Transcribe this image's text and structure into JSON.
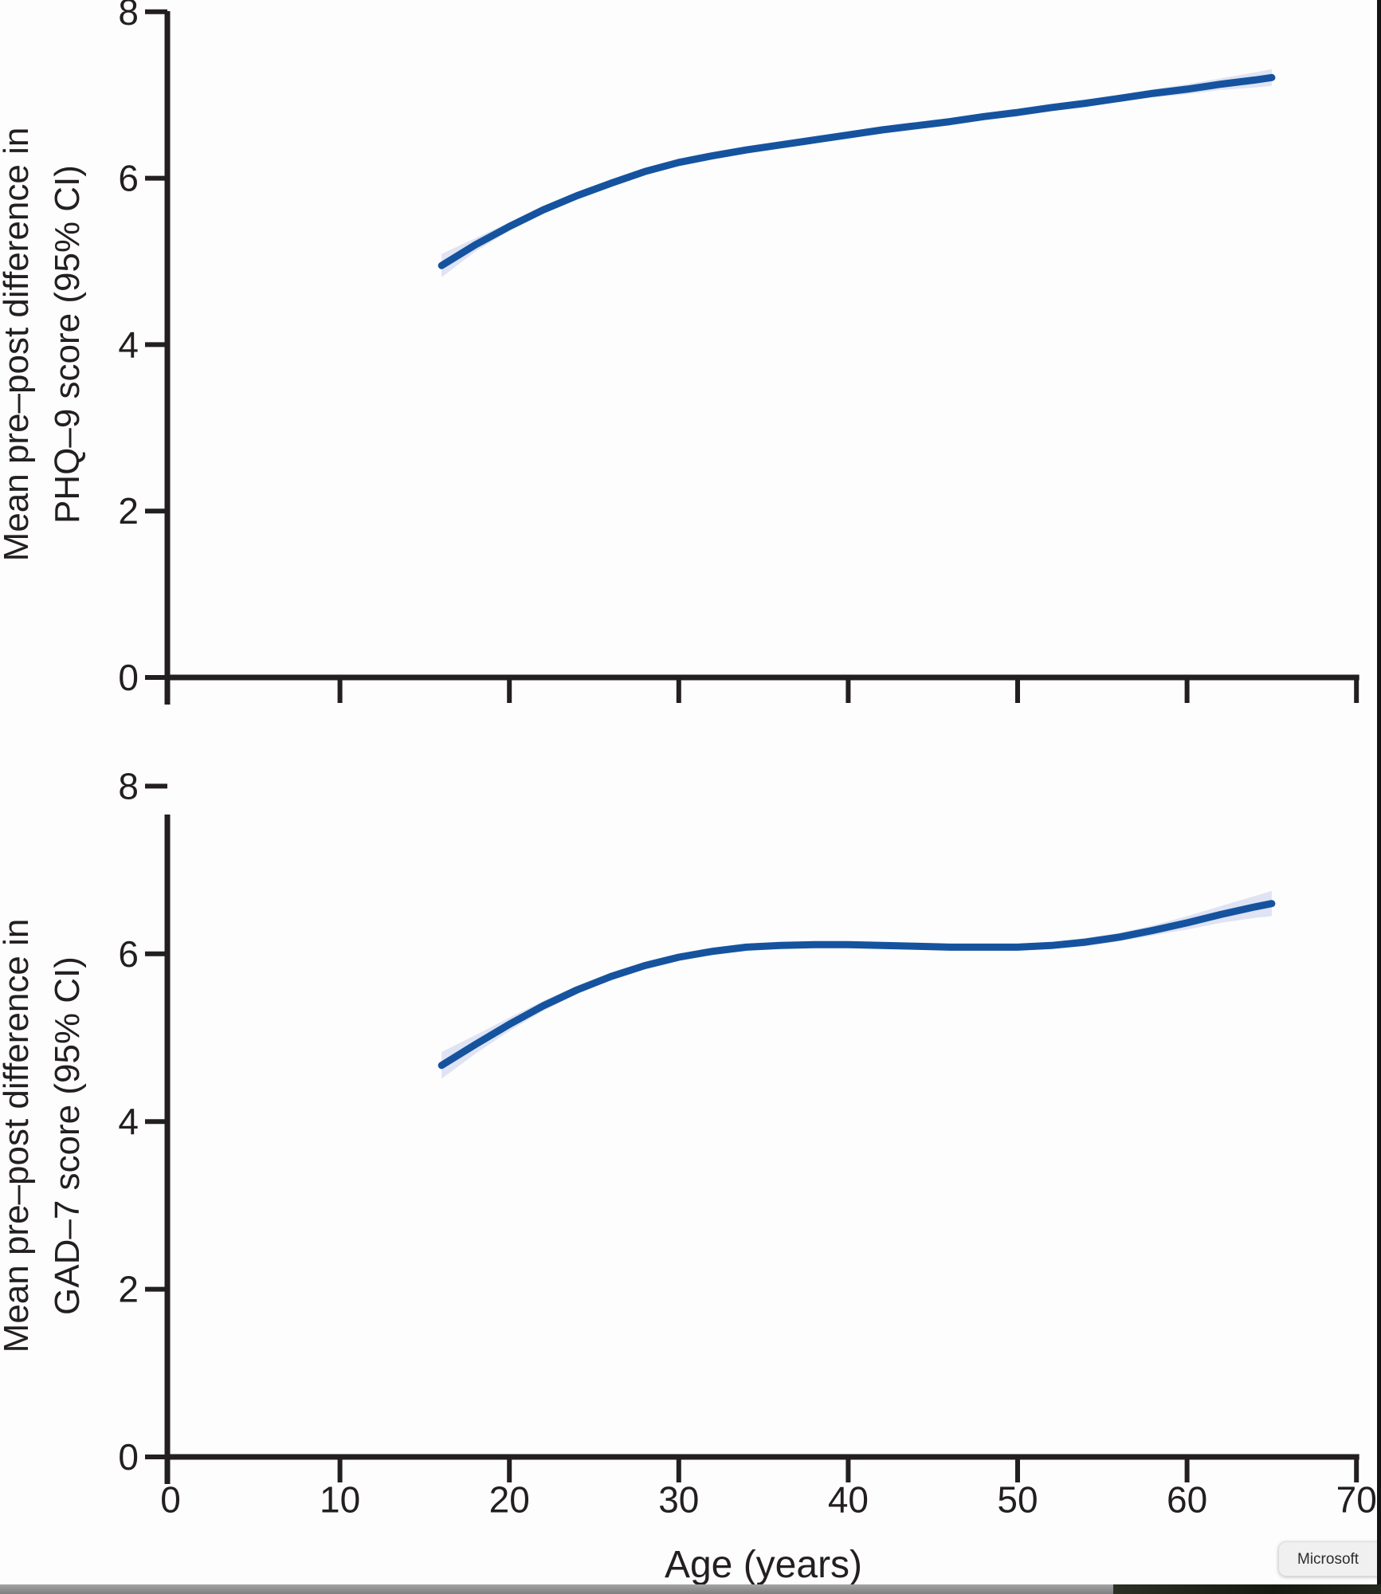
{
  "figure": {
    "axis_color": "#231f20",
    "background": "#fdfdfd"
  },
  "overlay": {
    "badge_text": "Microsoft"
  },
  "chart_data": [
    {
      "type": "line",
      "name": "phq9",
      "title": "",
      "ylabel_line1": "Mean pre–post difference in",
      "ylabel_line2": "PHQ–9 score (95% CI)",
      "xlabel": "",
      "xlim": [
        0,
        70
      ],
      "ylim": [
        0,
        8
      ],
      "yticks": [
        0,
        2,
        4,
        6,
        8
      ],
      "xticks": [
        10,
        20,
        30,
        40,
        50,
        60,
        70
      ],
      "xtick_labels": null,
      "legend": "none",
      "grid": false,
      "x": [
        16,
        18,
        20,
        22,
        24,
        26,
        28,
        30,
        32,
        34,
        36,
        38,
        40,
        42,
        44,
        46,
        48,
        50,
        52,
        54,
        56,
        58,
        60,
        62,
        64,
        65
      ],
      "y": [
        4.95,
        5.2,
        5.42,
        5.62,
        5.79,
        5.94,
        6.08,
        6.19,
        6.27,
        6.34,
        6.4,
        6.46,
        6.52,
        6.58,
        6.63,
        6.68,
        6.74,
        6.79,
        6.85,
        6.9,
        6.96,
        7.02,
        7.07,
        7.13,
        7.18,
        7.21
      ],
      "ci_half": [
        0.14,
        0.08,
        0.05,
        0.04,
        0.03,
        0.03,
        0.03,
        0.03,
        0.03,
        0.03,
        0.03,
        0.03,
        0.03,
        0.03,
        0.03,
        0.03,
        0.03,
        0.03,
        0.03,
        0.04,
        0.04,
        0.05,
        0.06,
        0.07,
        0.09,
        0.1
      ],
      "line_color": "#15539f",
      "band_color": "#dfe3f3"
    },
    {
      "type": "line",
      "name": "gad7",
      "title": "",
      "ylabel_line1": "Mean pre–post difference in",
      "ylabel_line2": "GAD–7 score (95% CI)",
      "xlabel": "Age (years)",
      "xlim": [
        0,
        70
      ],
      "ylim": [
        0,
        8
      ],
      "yticks": [
        0,
        2,
        4,
        6,
        8
      ],
      "xticks": [
        0,
        10,
        20,
        30,
        40,
        50,
        60,
        70
      ],
      "xtick_labels": [
        "0",
        "10",
        "20",
        "30",
        "40",
        "50",
        "60",
        "70"
      ],
      "legend": "none",
      "grid": false,
      "x": [
        16,
        18,
        20,
        22,
        24,
        26,
        28,
        30,
        32,
        34,
        36,
        38,
        40,
        42,
        44,
        46,
        48,
        50,
        52,
        54,
        56,
        58,
        60,
        62,
        64,
        65
      ],
      "y": [
        4.67,
        4.92,
        5.16,
        5.38,
        5.57,
        5.73,
        5.86,
        5.96,
        6.03,
        6.08,
        6.1,
        6.11,
        6.11,
        6.1,
        6.09,
        6.08,
        6.08,
        6.08,
        6.1,
        6.14,
        6.2,
        6.28,
        6.37,
        6.47,
        6.56,
        6.6
      ],
      "ci_half": [
        0.16,
        0.11,
        0.08,
        0.06,
        0.05,
        0.04,
        0.04,
        0.04,
        0.04,
        0.04,
        0.04,
        0.04,
        0.04,
        0.04,
        0.04,
        0.04,
        0.04,
        0.04,
        0.04,
        0.05,
        0.05,
        0.06,
        0.08,
        0.1,
        0.13,
        0.15
      ],
      "line_color": "#15539f",
      "band_color": "#dfe3f3"
    }
  ]
}
